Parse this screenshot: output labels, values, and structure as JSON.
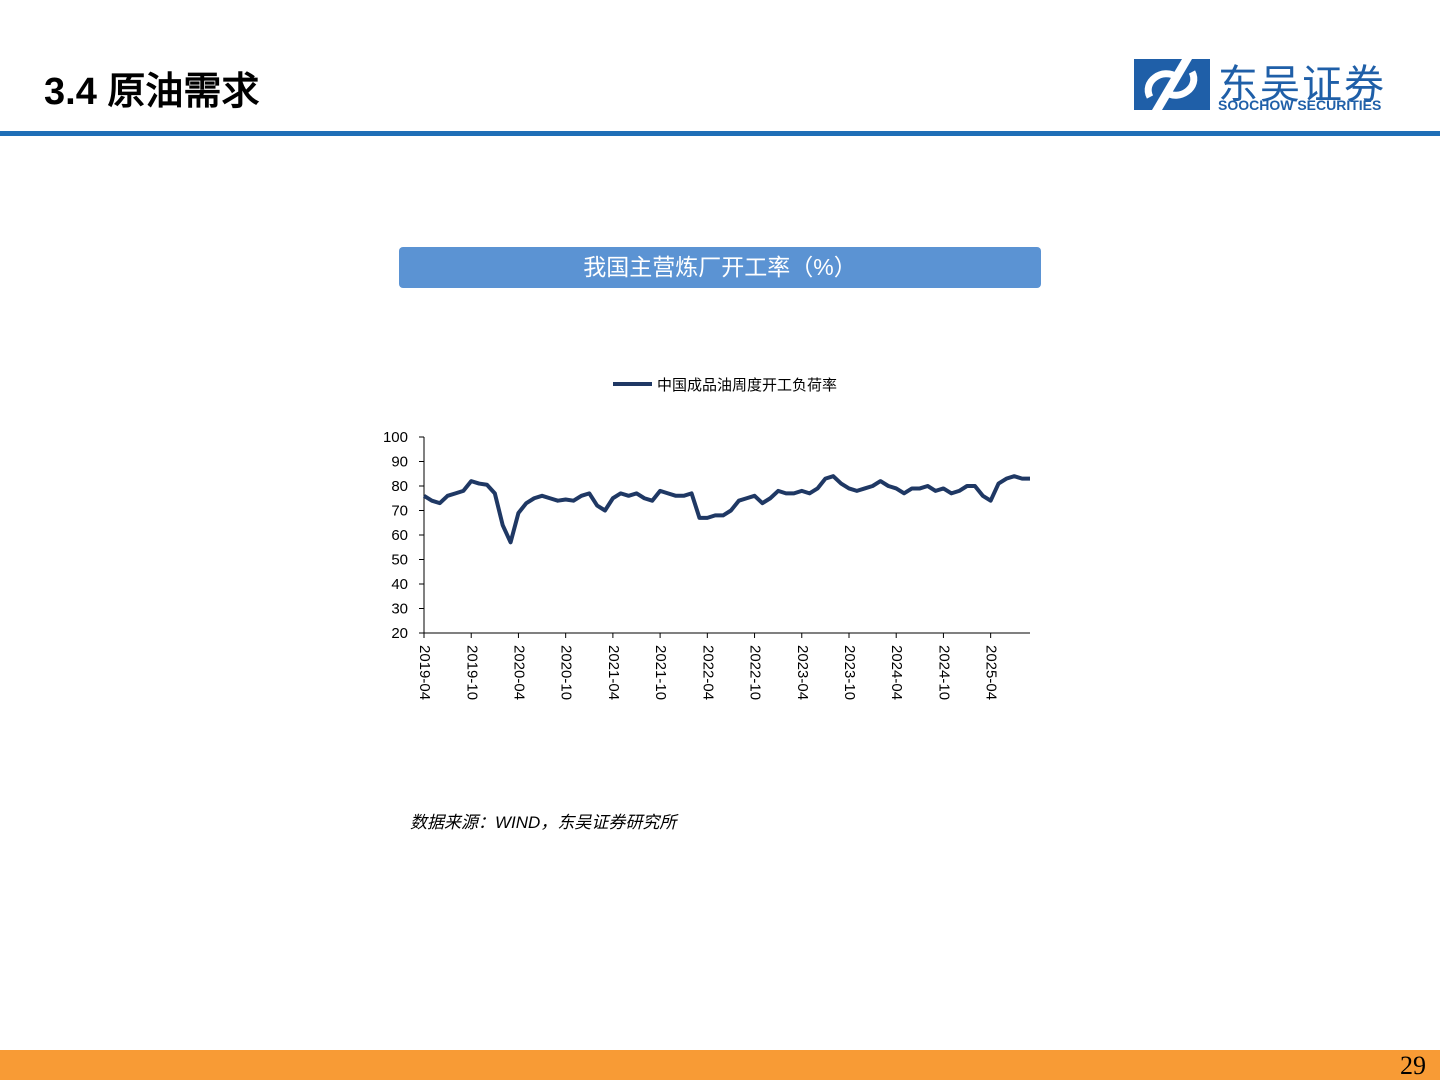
{
  "header": {
    "title": "3.4 原油需求",
    "logo_cn": "东吴证券",
    "logo_en": "SOOCHOW SECURITIES"
  },
  "panel_title": "我国主营炼厂开工率（%）",
  "chart_data": {
    "type": "line",
    "x": [
      "2019-04",
      "2019-05",
      "2019-06",
      "2019-07",
      "2019-08",
      "2019-09",
      "2019-10",
      "2019-11",
      "2019-12",
      "2020-01",
      "2020-02",
      "2020-03",
      "2020-04",
      "2020-05",
      "2020-06",
      "2020-07",
      "2020-08",
      "2020-09",
      "2020-10",
      "2020-11",
      "2020-12",
      "2021-01",
      "2021-02",
      "2021-03",
      "2021-04",
      "2021-05",
      "2021-06",
      "2021-07",
      "2021-08",
      "2021-09",
      "2021-10",
      "2021-11",
      "2021-12",
      "2022-01",
      "2022-02",
      "2022-03",
      "2022-04",
      "2022-05",
      "2022-06",
      "2022-07",
      "2022-08",
      "2022-09",
      "2022-10",
      "2022-11",
      "2022-12",
      "2023-01",
      "2023-02",
      "2023-03",
      "2023-04",
      "2023-05",
      "2023-06",
      "2023-07",
      "2023-08",
      "2023-09",
      "2023-10",
      "2023-11",
      "2023-12",
      "2024-01",
      "2024-02",
      "2024-03",
      "2024-04",
      "2024-05",
      "2024-06",
      "2024-07",
      "2024-08",
      "2024-09",
      "2024-10",
      "2024-11",
      "2024-12",
      "2025-01",
      "2025-02",
      "2025-03",
      "2025-04",
      "2025-05",
      "2025-06",
      "2025-07",
      "2025-08",
      "2025-09"
    ],
    "series": [
      {
        "name": "中国成品油周度开工负荷率",
        "color": "#1f3864",
        "values": [
          76,
          74,
          73,
          76,
          77,
          78,
          82,
          81,
          80.5,
          77,
          64,
          57,
          69,
          73,
          75,
          76,
          75,
          74,
          74.5,
          74,
          76,
          77,
          72,
          70,
          75,
          77,
          76,
          77,
          75,
          74,
          78,
          77,
          76,
          76,
          77,
          67,
          67,
          68,
          68,
          70,
          74,
          75,
          76,
          73,
          75,
          78,
          77,
          77,
          78,
          77,
          79,
          83,
          84,
          81,
          79,
          78,
          79,
          80,
          82,
          80,
          79,
          77,
          79,
          79,
          80,
          78,
          79,
          77,
          78,
          80,
          80,
          76,
          74,
          81,
          83,
          84,
          83,
          83
        ]
      }
    ],
    "xlim": [
      "2019-04",
      "2025-09"
    ],
    "xticks": [
      "2019-04",
      "2019-10",
      "2020-04",
      "2020-10",
      "2021-04",
      "2021-10",
      "2022-04",
      "2022-10",
      "2023-04",
      "2023-10",
      "2024-04",
      "2024-10",
      "2025-04"
    ],
    "ylim": [
      20,
      100
    ],
    "yticks": [
      20,
      30,
      40,
      50,
      60,
      70,
      80,
      90,
      100
    ],
    "legend": "top"
  },
  "source": "数据来源：WIND，东吴证券研究所",
  "page_number": "29"
}
